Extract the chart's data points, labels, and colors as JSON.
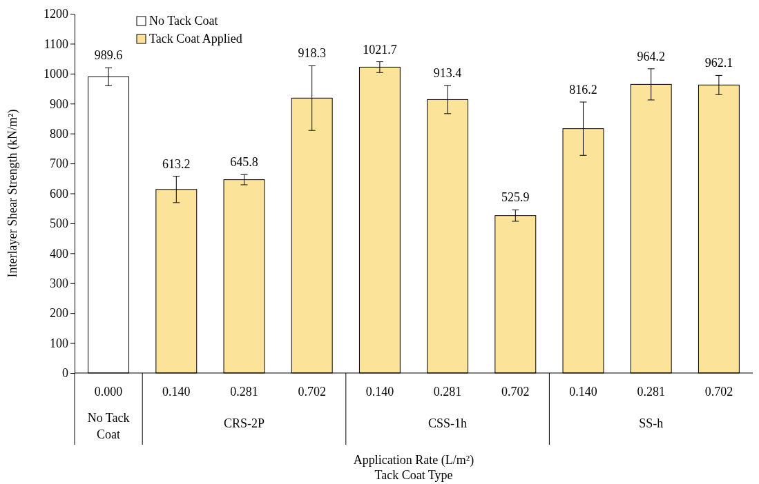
{
  "chart_data": {
    "type": "bar",
    "ylabel": "Interlayer  Shear Strength (kN/m²)",
    "xlabel": "Application  Rate (L/m²)\nTack Coat Type",
    "categories": [
      "0.000",
      "0.140",
      "0.281",
      "0.702",
      "0.140",
      "0.281",
      "0.702",
      "0.140",
      "0.281",
      "0.702"
    ],
    "series": [
      {
        "name": "No Tack Coat",
        "color": "#ffffff",
        "values": [
          989.6,
          null,
          null,
          null,
          null,
          null,
          null,
          null,
          null,
          null
        ],
        "errors": [
          30,
          null,
          null,
          null,
          null,
          null,
          null,
          null,
          null,
          null
        ]
      },
      {
        "name": "Tack Coat Applied",
        "color": "#fbe39a",
        "values": [
          null,
          613.2,
          645.8,
          918.3,
          1021.7,
          913.4,
          525.9,
          816.2,
          964.2,
          962.1
        ],
        "errors": [
          null,
          44,
          17,
          108,
          18,
          47,
          19,
          89,
          52,
          32
        ]
      }
    ],
    "ylim": [
      0,
      1200
    ],
    "yticks": [
      0,
      100,
      200,
      300,
      400,
      500,
      600,
      700,
      800,
      900,
      1000,
      1100,
      1200
    ],
    "data_labels": true,
    "legend": "top left",
    "grid": false,
    "annotations": [
      "No Tack\nCoat",
      "CRS-2P",
      "CSS-1h",
      "SS-h"
    ]
  }
}
